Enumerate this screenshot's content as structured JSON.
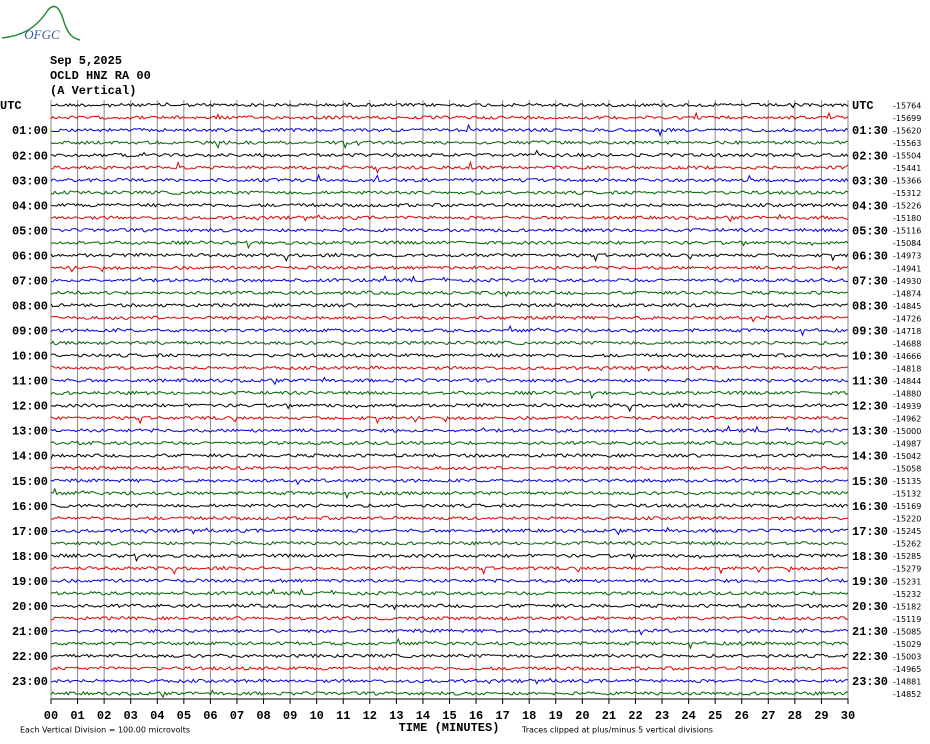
{
  "chart_data": {
    "type": "helicorder",
    "logo": "OFGC",
    "title": "Sep 5,2025",
    "subtitle": "OCLD HNZ RA 00",
    "component": "(A Vertical)",
    "categories": [
      "UTC",
      null,
      "01:00",
      null,
      "02:00",
      null,
      "03:00",
      null,
      "04:00",
      null,
      "05:00",
      null,
      "06:00",
      null,
      "07:00",
      null,
      "08:00",
      null,
      "09:00",
      null,
      "10:00",
      null,
      "11:00",
      null,
      "12:00",
      null,
      "13:00",
      null,
      "14:00",
      null,
      "15:00",
      null,
      "16:00",
      null,
      "17:00",
      null,
      "18:00",
      null,
      "19:00",
      null,
      "20:00",
      null,
      "21:00",
      null,
      "22:00",
      null,
      "23:00",
      null
    ],
    "right_labels": [
      "UTC",
      null,
      "01:30",
      null,
      "02:30",
      null,
      "03:30",
      null,
      "04:30",
      null,
      "05:30",
      null,
      "06:30",
      null,
      "07:30",
      null,
      "08:30",
      null,
      "09:30",
      null,
      "10:30",
      null,
      "11:30",
      null,
      "12:30",
      null,
      "13:30",
      null,
      "14:30",
      null,
      "15:30",
      null,
      "16:30",
      null,
      "17:30",
      null,
      "18:30",
      null,
      "19:30",
      null,
      "20:30",
      null,
      "21:30",
      null,
      "22:30",
      null,
      "23:30",
      null
    ],
    "values": [
      -15764,
      -15699,
      -15620,
      -15563,
      -15504,
      -15441,
      -15366,
      -15312,
      -15226,
      -15180,
      -15116,
      -15084,
      -14973,
      -14941,
      -14930,
      -14874,
      -14845,
      -14726,
      -14718,
      -14688,
      -14666,
      -14818,
      -14844,
      -14880,
      -14939,
      -14962,
      -15000,
      -14987,
      -15042,
      -15058,
      -15135,
      -15132,
      -15169,
      -15220,
      -15245,
      -15262,
      -15285,
      -15279,
      -15231,
      -15232,
      -15182,
      -15119,
      -15085,
      -15029,
      -15003,
      -14965,
      -14881,
      -14852
    ],
    "trace_colors": [
      "#000000",
      "#e00000",
      "#0000e0",
      "#006400"
    ],
    "xlim": [
      0,
      30
    ],
    "xticks": [
      {
        "value": 0,
        "label": "00"
      },
      {
        "value": 1,
        "label": "01"
      },
      {
        "value": 2,
        "label": "02"
      },
      {
        "value": 3,
        "label": "03"
      },
      {
        "value": 4,
        "label": "04"
      },
      {
        "value": 5,
        "label": "05"
      },
      {
        "value": 6,
        "label": "06"
      },
      {
        "value": 7,
        "label": "07"
      },
      {
        "value": 8,
        "label": "08"
      },
      {
        "value": 9,
        "label": "09"
      },
      10,
      11,
      12,
      13,
      14,
      15,
      16,
      17,
      18,
      19,
      20,
      21,
      22,
      23,
      24,
      25,
      26,
      27,
      28,
      29,
      30
    ],
    "xlabel": "TIME (MINUTES)",
    "scale_note": "Each Vertical Division =  100.00 microvolts",
    "clip_note": "Traces clipped at plus/minus 5 vertical divisions",
    "grid": true
  }
}
